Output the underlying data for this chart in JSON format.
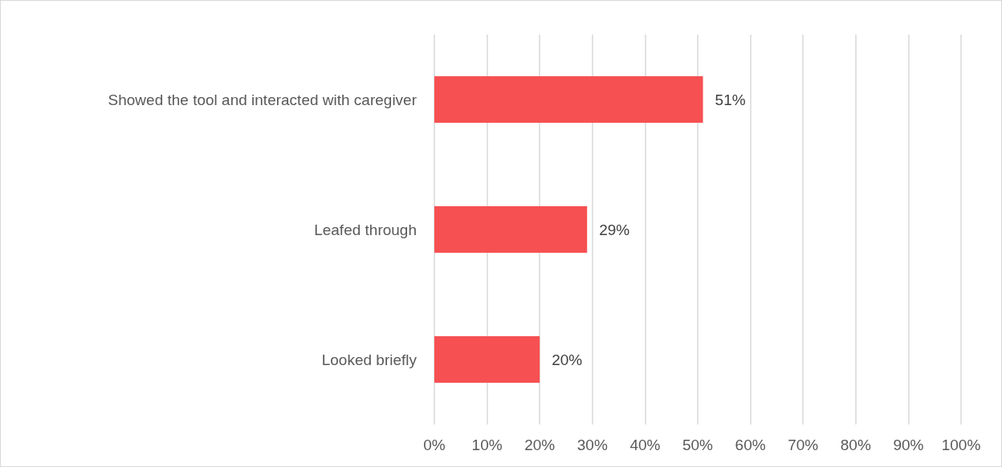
{
  "chart_data": {
    "type": "bar",
    "orientation": "horizontal",
    "categories": [
      "Showed the tool and interacted with caregiver",
      "Leafed through",
      "Looked briefly"
    ],
    "values": [
      51,
      29,
      20
    ],
    "value_labels": [
      "51%",
      "29%",
      "20%"
    ],
    "color": "#f65052",
    "xlim": [
      0,
      100
    ],
    "xticks": [
      {
        "value": 0,
        "label": "0%"
      },
      {
        "value": 10,
        "label": "10%"
      },
      {
        "value": 20,
        "label": "20%"
      },
      {
        "value": 30,
        "label": "30%"
      },
      {
        "value": 40,
        "label": "40%"
      },
      {
        "value": 50,
        "label": "50%"
      },
      {
        "value": 60,
        "label": "60%"
      },
      {
        "value": 70,
        "label": "70%"
      },
      {
        "value": 80,
        "label": "80%"
      },
      {
        "value": 90,
        "label": "90%"
      },
      {
        "value": 100,
        "label": "100%"
      }
    ],
    "grid": "x"
  }
}
